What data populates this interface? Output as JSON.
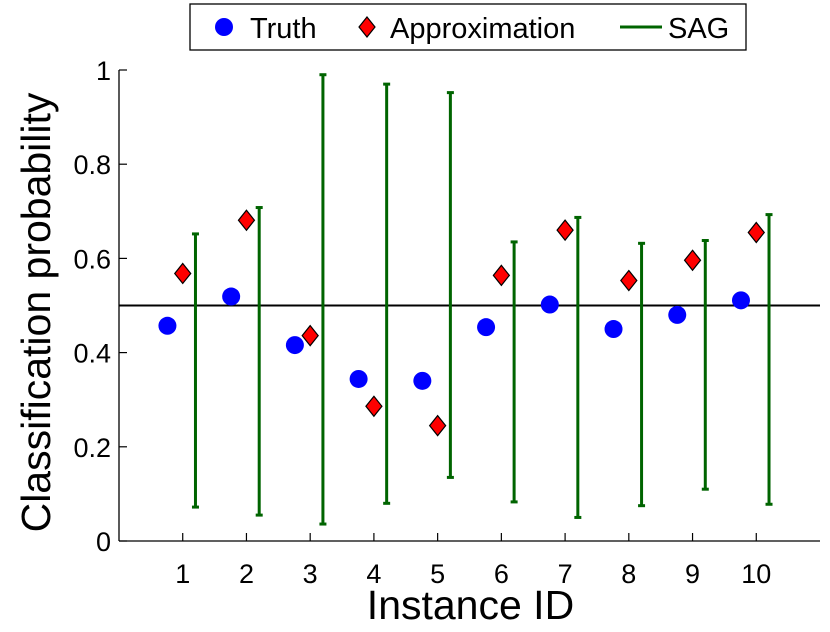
{
  "chart_data": {
    "type": "scatter",
    "title": "",
    "xlabel": "Instance ID",
    "ylabel": "Classification probability",
    "xlim": [
      0,
      11
    ],
    "ylim": [
      0,
      1
    ],
    "x_ticks": [
      "1",
      "2",
      "3",
      "4",
      "5",
      "6",
      "7",
      "8",
      "9",
      "10"
    ],
    "y_ticks": [
      "0",
      "0.2",
      "0.4",
      "0.6",
      "0.8",
      "1"
    ],
    "reference_line": 0.5,
    "legend": {
      "placement": "top-center",
      "entries": [
        "Truth",
        "Approximation",
        "SAG"
      ]
    },
    "series": [
      {
        "name": "Truth",
        "marker": "circle",
        "color": "#0000ff",
        "x": [
          1,
          2,
          3,
          4,
          5,
          6,
          7,
          8,
          9,
          10
        ],
        "values": [
          0.457,
          0.519,
          0.416,
          0.344,
          0.34,
          0.454,
          0.502,
          0.45,
          0.48,
          0.511
        ]
      },
      {
        "name": "Approximation",
        "marker": "diamond",
        "color": "#ff0000",
        "x": [
          1,
          2,
          3,
          4,
          5,
          6,
          7,
          8,
          9,
          10
        ],
        "values": [
          0.568,
          0.681,
          0.436,
          0.286,
          0.245,
          0.564,
          0.66,
          0.553,
          0.596,
          0.655
        ]
      },
      {
        "name": "SAG",
        "marker": "errorbar",
        "color": "#006400",
        "x": [
          1,
          2,
          3,
          4,
          5,
          6,
          7,
          8,
          9,
          10
        ],
        "low": [
          0.072,
          0.055,
          0.036,
          0.08,
          0.135,
          0.083,
          0.05,
          0.075,
          0.11,
          0.078
        ],
        "high": [
          0.652,
          0.708,
          0.99,
          0.97,
          0.952,
          0.635,
          0.687,
          0.632,
          0.638,
          0.693
        ]
      }
    ]
  }
}
